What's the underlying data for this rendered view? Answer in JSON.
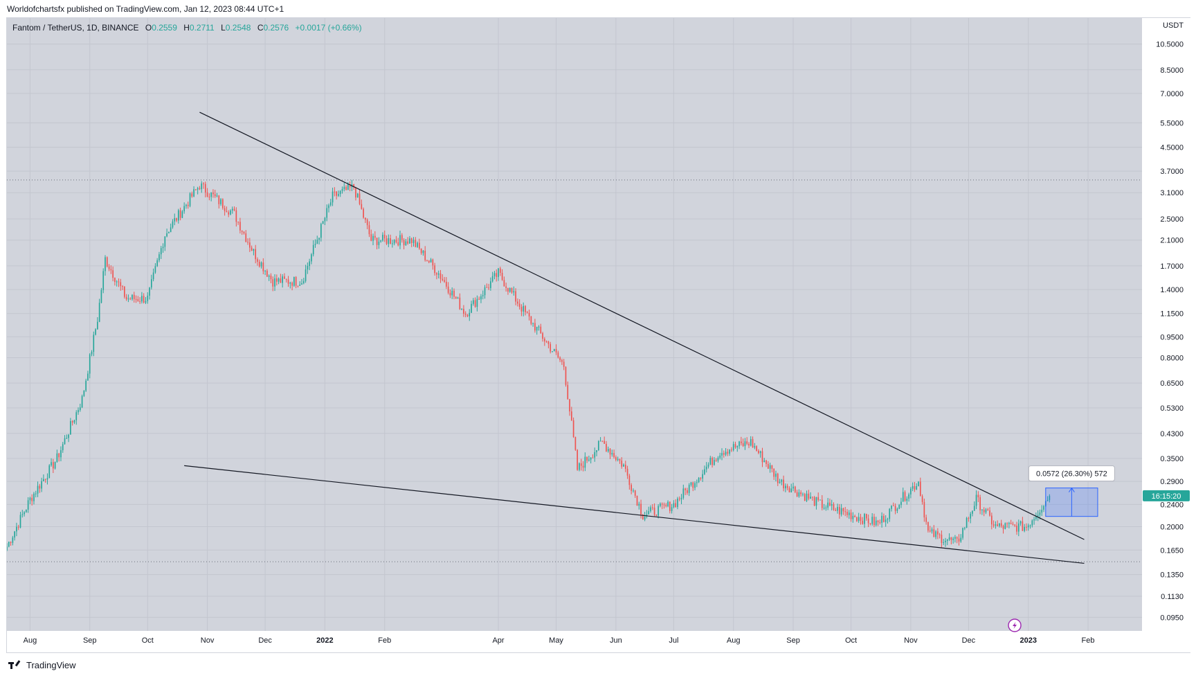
{
  "header": {
    "published": "Worldofchartsfx published on TradingView.com, Jan 12, 2023 08:44 UTC+1"
  },
  "legend": {
    "symbol": "Fantom / TetherUS, 1D, BINANCE",
    "o_label": "O",
    "o": "0.2559",
    "h_label": "H",
    "h": "0.2711",
    "l_label": "L",
    "l": "0.2548",
    "c_label": "C",
    "c": "0.2576",
    "change": "+0.0017 (+0.66%)"
  },
  "footer": {
    "brand": "TradingView"
  },
  "colors": {
    "up": "#26a69a",
    "down": "#ef5350",
    "bg": "#d1d4dc",
    "grid": "#c3c6cf",
    "accent": "#2962ff",
    "countdown_bg": "#26a69a"
  },
  "chart_data": {
    "type": "candlestick",
    "title": "Fantom / TetherUS, 1D, BINANCE",
    "currency_label": "USDT",
    "yscale": "log",
    "ylim": [
      0.085,
      13.0
    ],
    "y_ticks": [
      "10.5000",
      "8.5000",
      "7.0000",
      "5.5000",
      "4.5000",
      "3.7000",
      "3.1000",
      "2.5000",
      "2.1000",
      "1.7000",
      "1.4000",
      "1.1500",
      "0.9500",
      "0.8000",
      "0.6500",
      "0.5300",
      "0.4300",
      "0.3500",
      "0.2900",
      "0.2400",
      "0.2000",
      "0.1650",
      "0.1350",
      "0.1130",
      "0.0950"
    ],
    "x_ticks": [
      "Aug",
      "Sep",
      "Oct",
      "Nov",
      "Dec",
      "2022",
      "Feb",
      "Apr",
      "May",
      "Jun",
      "Jul",
      "Aug",
      "Sep",
      "Oct",
      "Nov",
      "Dec",
      "2023",
      "Feb"
    ],
    "last_price": 0.2576,
    "countdown": "16:15:20",
    "resistance_line": {
      "from": [
        "2021-10-28",
        6.0
      ],
      "through": [
        "2022-01-15",
        3.4
      ],
      "to": [
        "2023-01-30",
        0.18
      ]
    },
    "support_line": {
      "from": [
        "2021-10-20",
        0.33
      ],
      "to": [
        "2023-01-30",
        0.148
      ]
    },
    "horizontal_levels": [
      3.44,
      0.15
    ],
    "measurement": {
      "label": "0.0572 (26.30%) 572",
      "from_price": 0.2175,
      "to_price": 0.2747
    },
    "key_points": [
      {
        "date": "2021-07-20",
        "close": 0.17
      },
      {
        "date": "2021-08-01",
        "close": 0.25
      },
      {
        "date": "2021-08-15",
        "close": 0.35
      },
      {
        "date": "2021-08-28",
        "close": 0.57
      },
      {
        "date": "2021-09-05",
        "close": 1.1
      },
      {
        "date": "2021-09-09",
        "close": 1.8
      },
      {
        "date": "2021-09-20",
        "close": 1.3
      },
      {
        "date": "2021-10-01",
        "close": 1.3
      },
      {
        "date": "2021-10-10",
        "close": 2.2
      },
      {
        "date": "2021-10-28",
        "close": 3.3
      },
      {
        "date": "2021-11-15",
        "close": 2.6
      },
      {
        "date": "2021-11-25",
        "close": 1.9
      },
      {
        "date": "2021-12-05",
        "close": 1.5
      },
      {
        "date": "2021-12-20",
        "close": 1.5
      },
      {
        "date": "2022-01-05",
        "close": 3.0
      },
      {
        "date": "2022-01-16",
        "close": 3.25
      },
      {
        "date": "2022-01-25",
        "close": 2.1
      },
      {
        "date": "2022-02-15",
        "close": 2.1
      },
      {
        "date": "2022-03-01",
        "close": 1.6
      },
      {
        "date": "2022-03-15",
        "close": 1.15
      },
      {
        "date": "2022-04-01",
        "close": 1.6
      },
      {
        "date": "2022-04-15",
        "close": 1.15
      },
      {
        "date": "2022-05-05",
        "close": 0.75
      },
      {
        "date": "2022-05-12",
        "close": 0.32
      },
      {
        "date": "2022-05-25",
        "close": 0.4
      },
      {
        "date": "2022-06-05",
        "close": 0.33
      },
      {
        "date": "2022-06-15",
        "close": 0.22
      },
      {
        "date": "2022-07-01",
        "close": 0.24
      },
      {
        "date": "2022-07-25",
        "close": 0.37
      },
      {
        "date": "2022-08-10",
        "close": 0.4
      },
      {
        "date": "2022-08-25",
        "close": 0.29
      },
      {
        "date": "2022-09-15",
        "close": 0.24
      },
      {
        "date": "2022-10-15",
        "close": 0.205
      },
      {
        "date": "2022-11-05",
        "close": 0.29
      },
      {
        "date": "2022-11-10",
        "close": 0.19
      },
      {
        "date": "2022-11-25",
        "close": 0.175
      },
      {
        "date": "2022-12-05",
        "close": 0.25
      },
      {
        "date": "2022-12-15",
        "close": 0.2
      },
      {
        "date": "2022-12-31",
        "close": 0.2
      },
      {
        "date": "2023-01-12",
        "close": 0.2576
      }
    ]
  }
}
